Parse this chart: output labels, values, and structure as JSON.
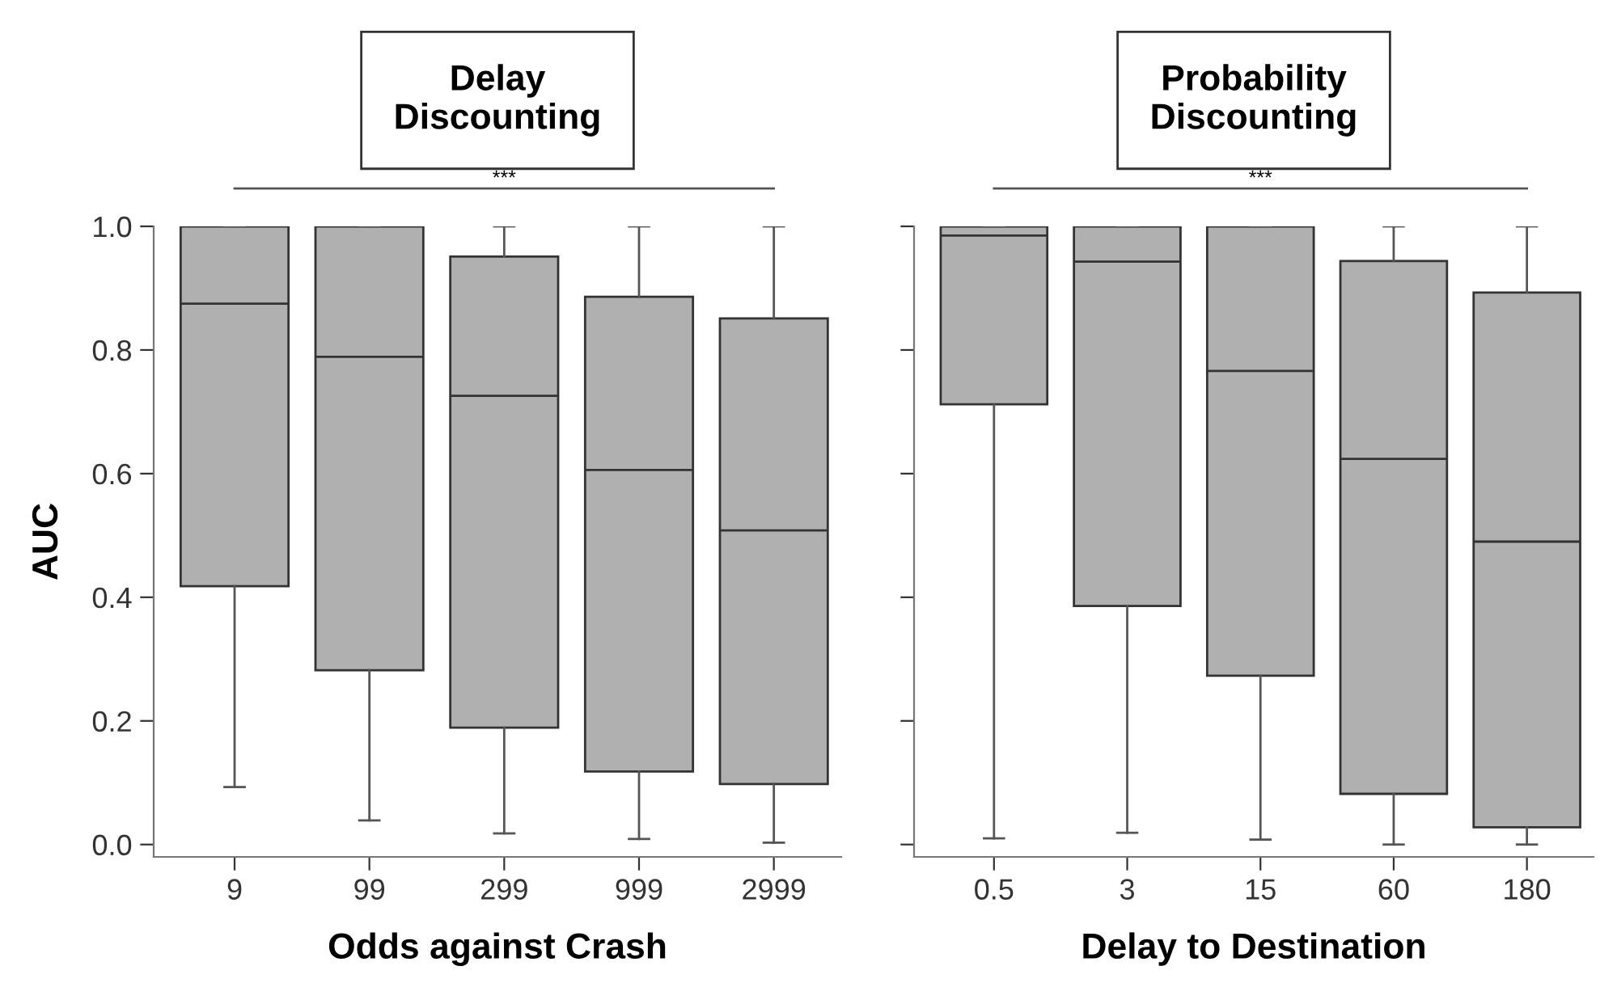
{
  "chart_data": [
    {
      "type": "box",
      "title": "Delay\nDiscounting",
      "xlabel": "Odds against Crash",
      "ylabel": "AUC",
      "categories": [
        "9",
        "99",
        "299",
        "999",
        "2999"
      ],
      "color": "#b0b0b0",
      "boxes": [
        {
          "low": 0.093,
          "q1": 0.418,
          "median": 0.875,
          "q3": 1.0,
          "high": 1.0
        },
        {
          "low": 0.039,
          "q1": 0.282,
          "median": 0.789,
          "q3": 1.0,
          "high": 1.0
        },
        {
          "low": 0.018,
          "q1": 0.189,
          "median": 0.726,
          "q3": 0.951,
          "high": 1.0
        },
        {
          "low": 0.009,
          "q1": 0.118,
          "median": 0.606,
          "q3": 0.886,
          "high": 1.0
        },
        {
          "low": 0.003,
          "q1": 0.098,
          "median": 0.508,
          "q3": 0.851,
          "high": 1.0
        }
      ],
      "ylim": [
        -0.02,
        1.0
      ],
      "yticks": [
        {
          "value": 0,
          "label": "0.0"
        },
        0.2,
        0.4,
        0.6,
        0.8,
        {
          "value": 1,
          "label": "1.0"
        }
      ],
      "annotations": [
        "***"
      ]
    },
    {
      "type": "box",
      "title": "Probability\nDiscounting",
      "xlabel": "Delay to Destination",
      "categories": [
        "0.5",
        "3",
        "15",
        "60",
        "180"
      ],
      "color": "#b0b0b0",
      "boxes": [
        {
          "low": 0.01,
          "q1": 0.712,
          "median": 0.985,
          "q3": 1.0,
          "high": 1.0
        },
        {
          "low": 0.019,
          "q1": 0.386,
          "median": 0.943,
          "q3": 1.0,
          "high": 1.0
        },
        {
          "low": 0.008,
          "q1": 0.273,
          "median": 0.766,
          "q3": 1.0,
          "high": 1.0
        },
        {
          "low": 0.0,
          "q1": 0.082,
          "median": 0.624,
          "q3": 0.944,
          "high": 1.0
        },
        {
          "low": 0.0,
          "q1": 0.028,
          "median": 0.49,
          "q3": 0.893,
          "high": 1.0
        }
      ],
      "ylim": [
        -0.02,
        1.0
      ],
      "yticks": [
        {
          "value": 0,
          "label": null
        },
        {
          "value": 0.2,
          "label": null
        },
        {
          "value": 0.4,
          "label": null
        },
        {
          "value": 0.6,
          "label": null
        },
        {
          "value": 0.8,
          "label": null
        },
        {
          "value": 1,
          "label": null
        }
      ],
      "tick_labels": "x",
      "annotations": [
        "***"
      ]
    }
  ]
}
